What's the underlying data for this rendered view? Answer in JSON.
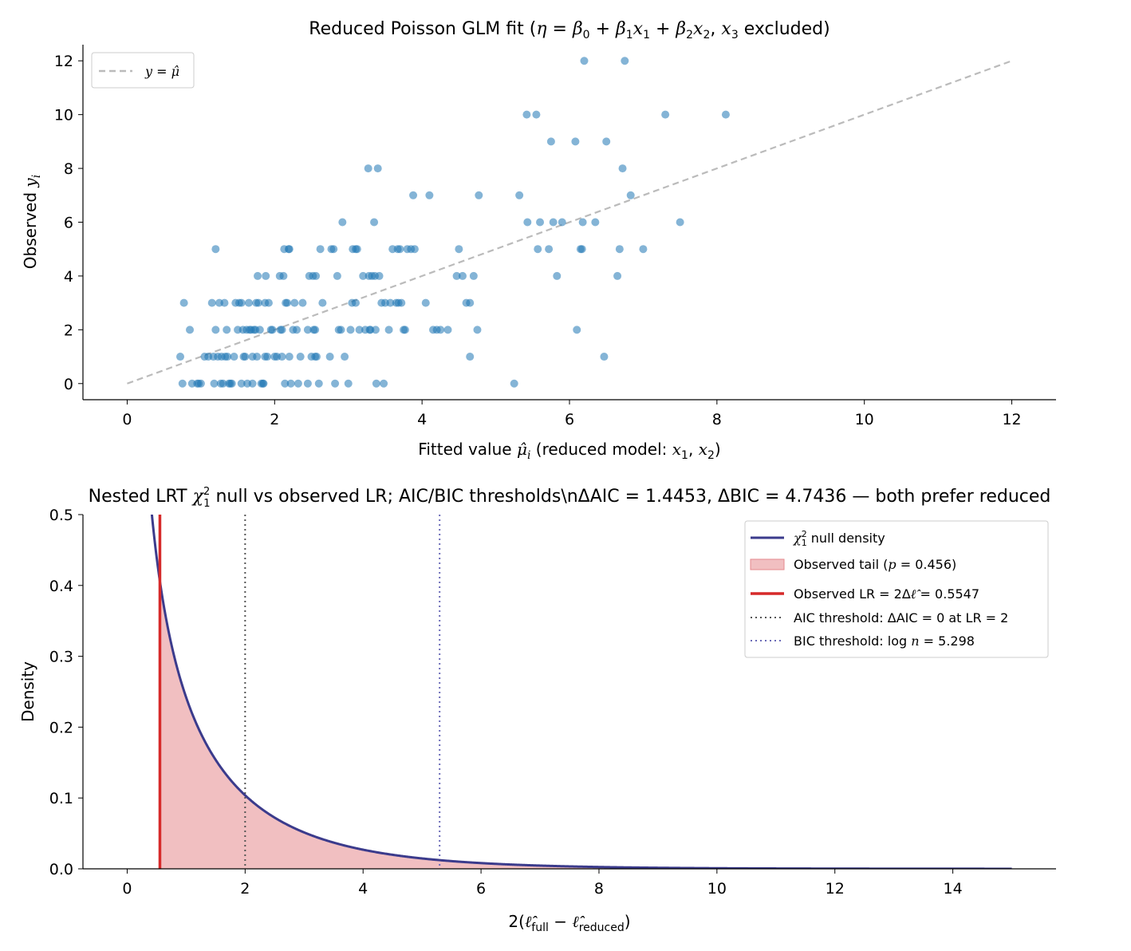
{
  "chart_data": [
    {
      "type": "scatter",
      "title": "Reduced Poisson GLM fit (η = β₀ + β₁x₁ + β₂x₂, x₃ excluded)",
      "xlabel": "Fitted value μ̂ᵢ (reduced model: x₁, x₂)",
      "ylabel": "Observed yᵢ",
      "xlim": [
        -0.6,
        12.6
      ],
      "ylim": [
        -0.6,
        12.6
      ],
      "xticks": [
        "0",
        "2",
        "4",
        "6",
        "8",
        "10",
        "12"
      ],
      "yticks": [
        "0",
        "2",
        "4",
        "6",
        "8",
        "10",
        "12"
      ],
      "grid": false,
      "legend_position": "top-left",
      "series": [
        {
          "name": "y = μ̂",
          "kind": "reference-line",
          "color": "#bbbbbb",
          "points": [
            [
              0,
              0
            ],
            [
              12,
              12
            ]
          ]
        },
        {
          "kind": "scatter",
          "color": "#1f77b4",
          "points": [
            [
              0.72,
              1
            ],
            [
              0.75,
              0
            ],
            [
              0.77,
              3
            ],
            [
              0.85,
              2
            ],
            [
              0.88,
              0
            ],
            [
              0.95,
              0
            ],
            [
              0.97,
              0
            ],
            [
              1.0,
              0
            ],
            [
              1.05,
              1
            ],
            [
              1.1,
              1
            ],
            [
              1.15,
              3
            ],
            [
              1.17,
              1
            ],
            [
              1.18,
              0
            ],
            [
              1.2,
              2
            ],
            [
              1.2,
              5
            ],
            [
              1.23,
              1
            ],
            [
              1.25,
              3
            ],
            [
              1.27,
              0
            ],
            [
              1.28,
              1
            ],
            [
              1.3,
              0
            ],
            [
              1.32,
              3
            ],
            [
              1.33,
              1
            ],
            [
              1.35,
              2
            ],
            [
              1.36,
              1
            ],
            [
              1.38,
              0
            ],
            [
              1.4,
              0
            ],
            [
              1.42,
              0
            ],
            [
              1.45,
              1
            ],
            [
              1.47,
              3
            ],
            [
              1.5,
              2
            ],
            [
              1.52,
              3
            ],
            [
              1.55,
              3
            ],
            [
              1.55,
              0
            ],
            [
              1.57,
              2
            ],
            [
              1.58,
              1
            ],
            [
              1.6,
              1
            ],
            [
              1.62,
              2
            ],
            [
              1.63,
              0
            ],
            [
              1.65,
              3
            ],
            [
              1.66,
              2
            ],
            [
              1.68,
              2
            ],
            [
              1.7,
              1
            ],
            [
              1.7,
              0
            ],
            [
              1.72,
              2
            ],
            [
              1.74,
              2
            ],
            [
              1.75,
              3
            ],
            [
              1.76,
              1
            ],
            [
              1.77,
              4
            ],
            [
              1.78,
              3
            ],
            [
              1.8,
              2
            ],
            [
              1.82,
              0
            ],
            [
              1.84,
              0
            ],
            [
              1.85,
              0
            ],
            [
              1.87,
              3
            ],
            [
              1.87,
              1
            ],
            [
              1.88,
              4
            ],
            [
              1.9,
              1
            ],
            [
              1.92,
              3
            ],
            [
              1.95,
              2
            ],
            [
              1.97,
              2
            ],
            [
              2.0,
              1
            ],
            [
              2.03,
              1
            ],
            [
              2.07,
              4
            ],
            [
              2.08,
              2
            ],
            [
              2.1,
              2
            ],
            [
              2.1,
              1
            ],
            [
              2.12,
              4
            ],
            [
              2.13,
              5
            ],
            [
              2.14,
              0
            ],
            [
              2.15,
              3
            ],
            [
              2.17,
              3
            ],
            [
              2.19,
              5
            ],
            [
              2.2,
              5
            ],
            [
              2.2,
              1
            ],
            [
              2.22,
              0
            ],
            [
              2.25,
              2
            ],
            [
              2.27,
              3
            ],
            [
              2.3,
              2
            ],
            [
              2.32,
              0
            ],
            [
              2.35,
              1
            ],
            [
              2.38,
              3
            ],
            [
              2.45,
              2
            ],
            [
              2.45,
              0
            ],
            [
              2.47,
              4
            ],
            [
              2.5,
              1
            ],
            [
              2.52,
              4
            ],
            [
              2.53,
              2
            ],
            [
              2.55,
              2
            ],
            [
              2.55,
              1
            ],
            [
              2.56,
              4
            ],
            [
              2.57,
              1
            ],
            [
              2.6,
              0
            ],
            [
              2.62,
              5
            ],
            [
              2.65,
              3
            ],
            [
              2.75,
              1
            ],
            [
              2.77,
              5
            ],
            [
              2.8,
              5
            ],
            [
              2.82,
              0
            ],
            [
              2.85,
              4
            ],
            [
              2.87,
              2
            ],
            [
              2.9,
              2
            ],
            [
              2.92,
              6
            ],
            [
              2.95,
              1
            ],
            [
              3.0,
              0
            ],
            [
              3.03,
              2
            ],
            [
              3.05,
              3
            ],
            [
              3.06,
              5
            ],
            [
              3.1,
              5
            ],
            [
              3.1,
              3
            ],
            [
              3.12,
              5
            ],
            [
              3.15,
              2
            ],
            [
              3.2,
              4
            ],
            [
              3.23,
              2
            ],
            [
              3.27,
              8
            ],
            [
              3.28,
              4
            ],
            [
              3.29,
              2
            ],
            [
              3.3,
              2
            ],
            [
              3.32,
              4
            ],
            [
              3.35,
              6
            ],
            [
              3.36,
              4
            ],
            [
              3.37,
              2
            ],
            [
              3.38,
              0
            ],
            [
              3.4,
              8
            ],
            [
              3.42,
              4
            ],
            [
              3.45,
              3
            ],
            [
              3.48,
              0
            ],
            [
              3.5,
              3
            ],
            [
              3.55,
              2
            ],
            [
              3.57,
              3
            ],
            [
              3.6,
              5
            ],
            [
              3.65,
              3
            ],
            [
              3.67,
              5
            ],
            [
              3.68,
              3
            ],
            [
              3.7,
              5
            ],
            [
              3.72,
              3
            ],
            [
              3.75,
              2
            ],
            [
              3.77,
              2
            ],
            [
              3.8,
              5
            ],
            [
              3.85,
              5
            ],
            [
              3.88,
              7
            ],
            [
              3.9,
              5
            ],
            [
              4.05,
              3
            ],
            [
              4.1,
              7
            ],
            [
              4.15,
              2
            ],
            [
              4.2,
              2
            ],
            [
              4.25,
              2
            ],
            [
              4.35,
              2
            ],
            [
              4.47,
              4
            ],
            [
              4.5,
              5
            ],
            [
              4.55,
              4
            ],
            [
              4.6,
              3
            ],
            [
              4.65,
              3
            ],
            [
              4.65,
              1
            ],
            [
              4.7,
              4
            ],
            [
              4.75,
              2
            ],
            [
              4.77,
              7
            ],
            [
              5.25,
              0
            ],
            [
              5.32,
              7
            ],
            [
              5.42,
              10
            ],
            [
              5.43,
              6
            ],
            [
              5.55,
              10
            ],
            [
              5.57,
              5
            ],
            [
              5.6,
              6
            ],
            [
              5.72,
              5
            ],
            [
              5.75,
              9
            ],
            [
              5.78,
              6
            ],
            [
              5.83,
              4
            ],
            [
              5.9,
              6
            ],
            [
              6.08,
              9
            ],
            [
              6.1,
              2
            ],
            [
              6.15,
              5
            ],
            [
              6.17,
              5
            ],
            [
              6.18,
              6
            ],
            [
              6.2,
              12
            ],
            [
              6.35,
              6
            ],
            [
              6.47,
              1
            ],
            [
              6.5,
              9
            ],
            [
              6.65,
              4
            ],
            [
              6.68,
              5
            ],
            [
              6.72,
              8
            ],
            [
              6.75,
              12
            ],
            [
              6.83,
              7
            ],
            [
              7.0,
              5
            ],
            [
              7.3,
              10
            ],
            [
              7.5,
              6
            ],
            [
              8.12,
              10
            ]
          ]
        }
      ]
    },
    {
      "type": "line",
      "title": "Nested LRT χ²₁ null vs observed LR; AIC/BIC thresholds\\nΔAIC = 1.4453, ΔBIC = 4.7436 — both prefer reduced",
      "xlabel": "2(ℓ̂full − ℓ̂reduced)",
      "ylabel": "Density",
      "xlim": [
        -0.75,
        15.75
      ],
      "ylim": [
        0,
        0.5
      ],
      "xticks": [
        "0",
        "2",
        "4",
        "6",
        "8",
        "10",
        "12",
        "14"
      ],
      "yticks": [
        "0.0",
        "0.1",
        "0.2",
        "0.3",
        "0.4",
        "0.5"
      ],
      "grid": false,
      "legend_position": "top-right",
      "null_df": 1,
      "x_range": [
        0.0,
        15.0
      ],
      "observed_lr": 0.5547,
      "aic_threshold": 2,
      "bic_threshold": 5.298,
      "p_value": 0.456,
      "delta_aic": 1.4453,
      "delta_bic": 4.7436,
      "series": [
        {
          "name": "χ²₁ null density",
          "kind": "density",
          "color": "#3b3b8c"
        },
        {
          "name": "Observed tail (p = 0.456)",
          "kind": "area",
          "color": "#e58a8e"
        },
        {
          "name": "Observed LR = 2Δℓ̂ = 0.5547",
          "kind": "vline",
          "color": "#d62a2a"
        },
        {
          "name": "AIC threshold: ΔAIC = 0 at LR = 2",
          "kind": "vline-dotted",
          "color": "#555555"
        },
        {
          "name": "BIC threshold: log n = 5.298",
          "kind": "vline-dotted",
          "color": "#6b6bb8"
        }
      ]
    }
  ]
}
